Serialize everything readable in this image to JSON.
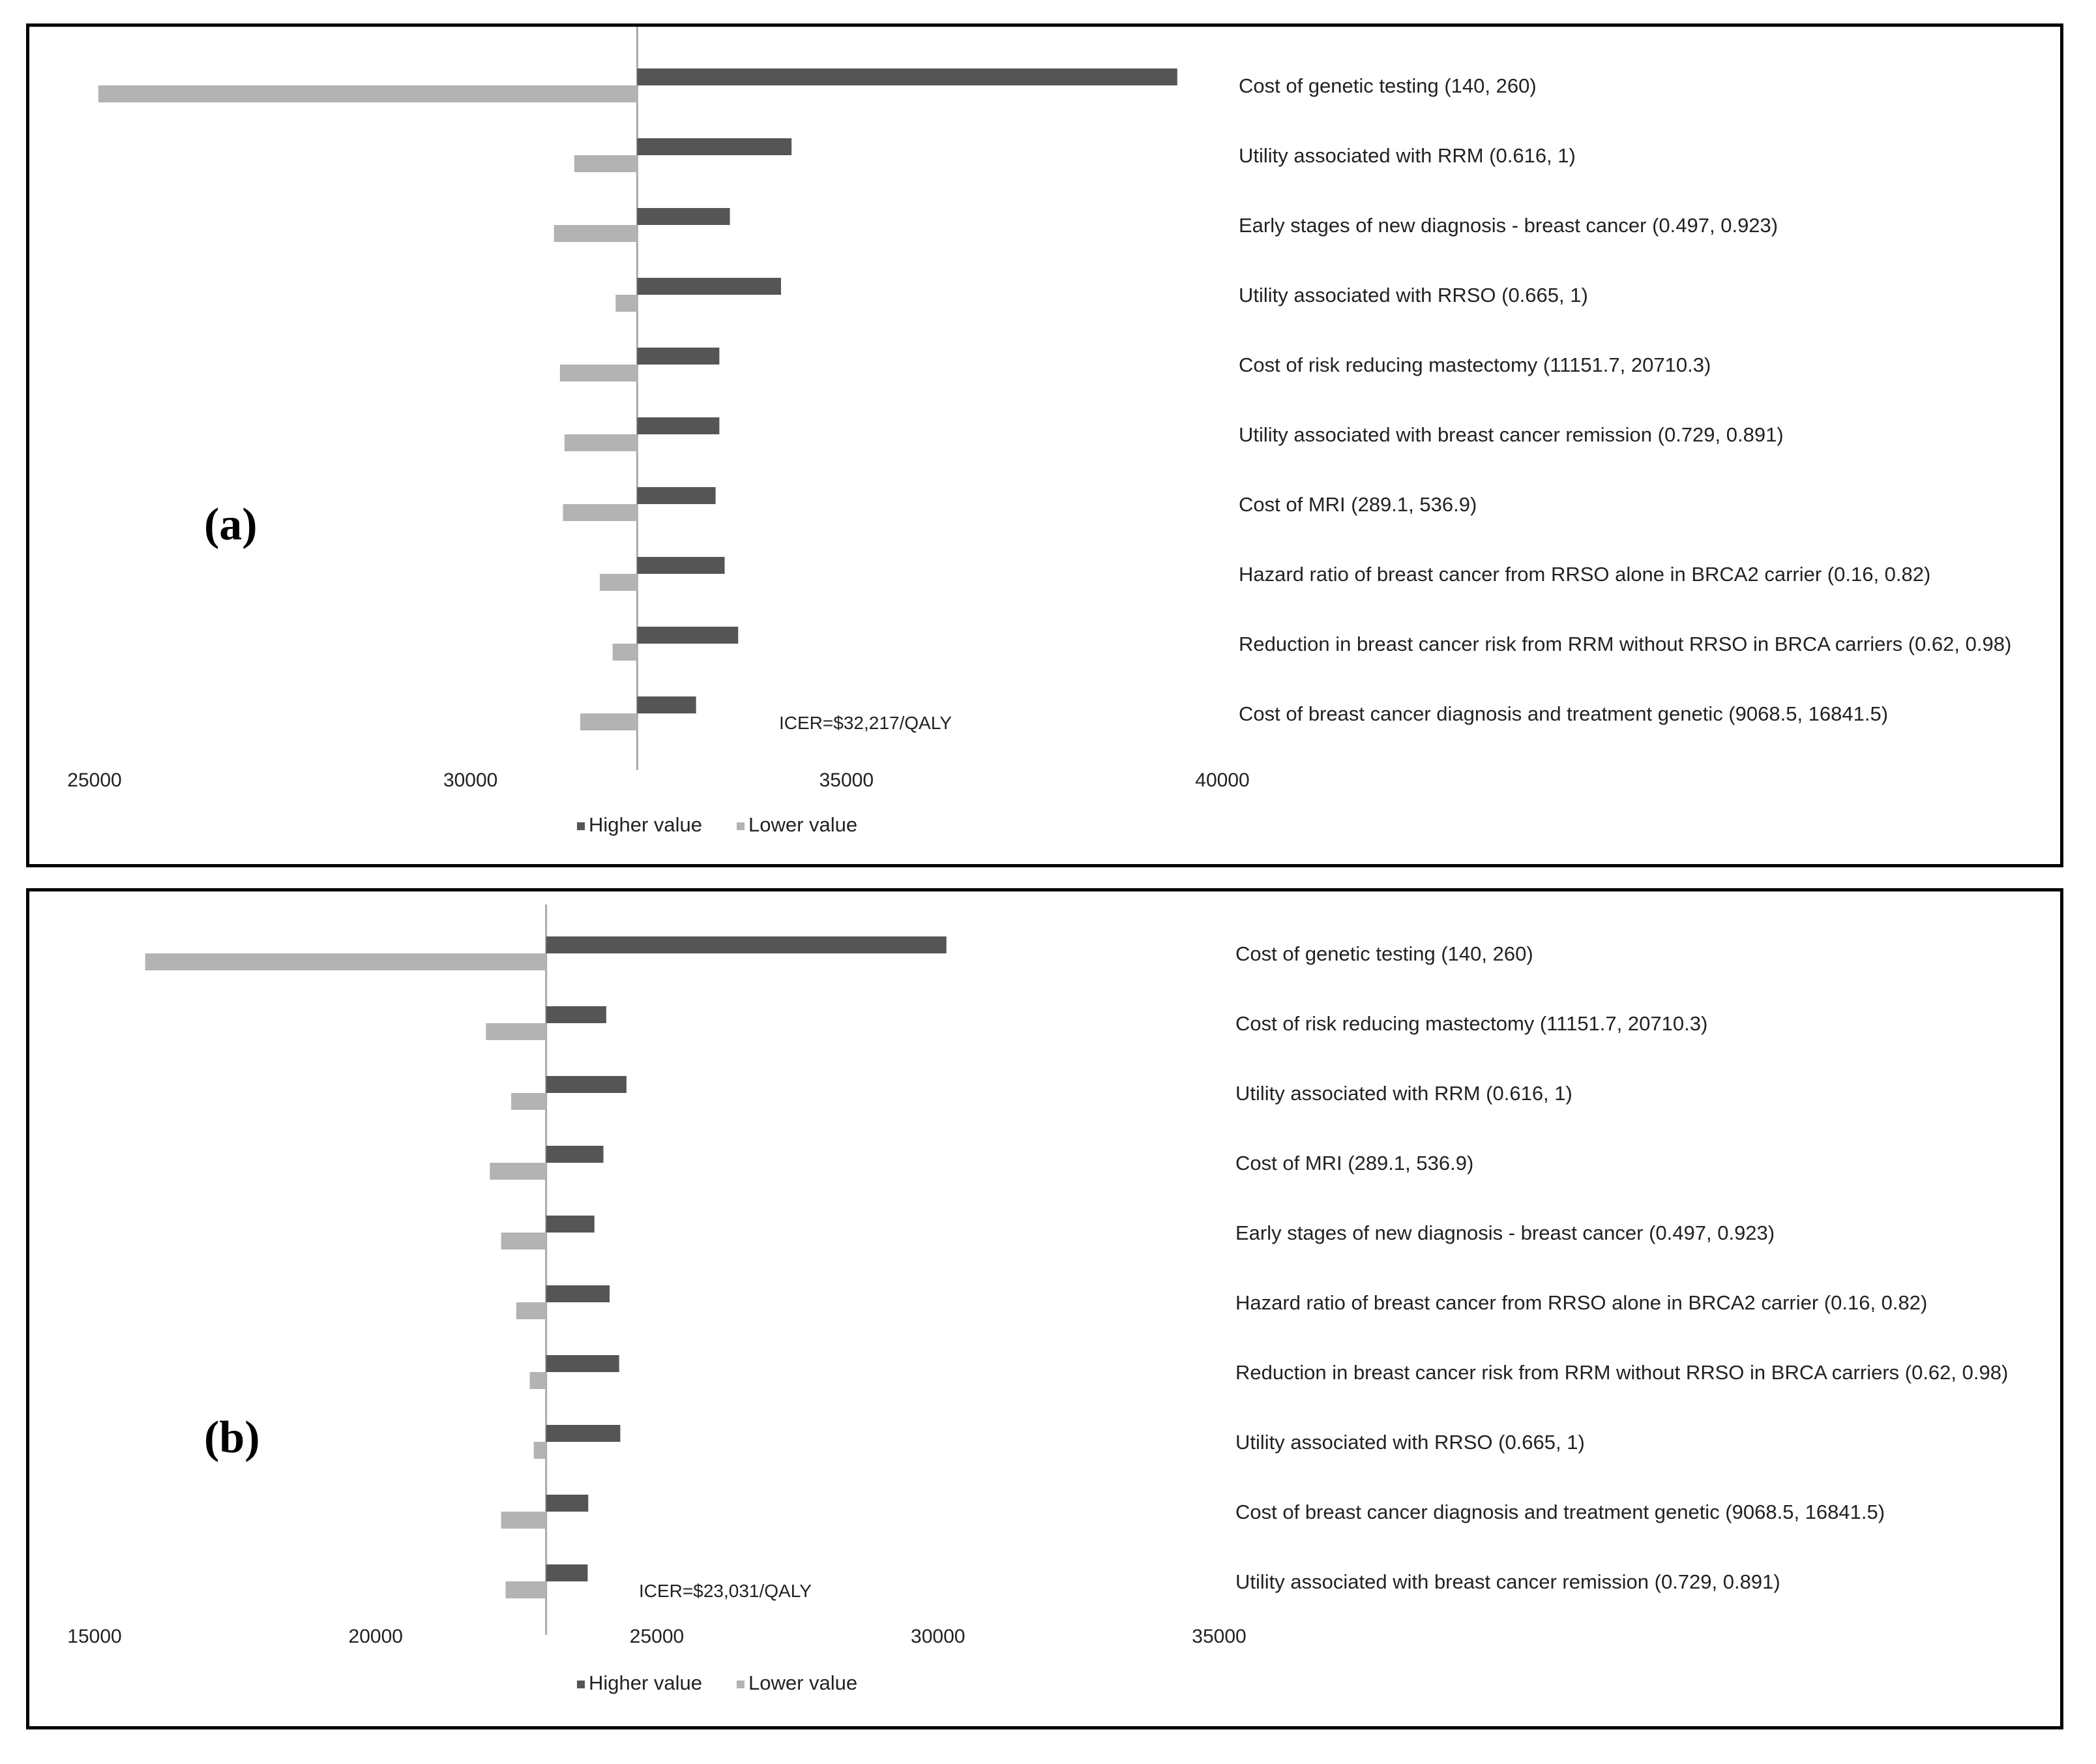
{
  "colors": {
    "higher": "#555555",
    "lower": "#b3b3b3",
    "baseline": "#aaaaaa",
    "border": "#000000"
  },
  "chart_data": [
    {
      "type": "bar",
      "orientation": "horizontal-tornado",
      "panel_label": "(a)",
      "base_value": 32217,
      "annotation": "ICER=$32,217/QALY",
      "xlim": [
        25000,
        40000
      ],
      "xticks": [
        "25000",
        "30000",
        "35000",
        "40000"
      ],
      "legend": [
        "Higher value",
        "Lower value"
      ],
      "legend_position": "bottom",
      "categories": [
        "Cost of genetic testing (140, 260)",
        "Utility associated with RRM (0.616, 1)",
        "Early stages of new diagnosis - breast cancer (0.497, 0.923)",
        "Utility associated with RRSO (0.665, 1)",
        "Cost of risk reducing mastectomy (11151.7, 20710.3)",
        "Utility associated with breast cancer remission (0.729, 0.891)",
        "Cost of MRI (289.1, 536.9)",
        "Hazard ratio of breast cancer from RRSO alone in BRCA2 carrier (0.16, 0.82)",
        "Reduction in breast cancer risk from RRM without RRSO in BRCA carriers (0.62, 0.98)",
        "Cost of breast cancer diagnosis and treatment genetic (9068.5, 16841.5)"
      ],
      "series": [
        {
          "name": "Higher value",
          "values": [
            39400,
            34270,
            33450,
            34130,
            33310,
            33310,
            33260,
            33380,
            33560,
            33000
          ]
        },
        {
          "name": "Lower value",
          "values": [
            25050,
            31380,
            31110,
            31930,
            31190,
            31250,
            31230,
            31720,
            31890,
            31460
          ]
        }
      ]
    },
    {
      "type": "bar",
      "orientation": "horizontal-tornado",
      "panel_label": "(b)",
      "base_value": 23031,
      "annotation": "ICER=$23,031/QALY",
      "xlim": [
        15000,
        35000
      ],
      "xticks": [
        "15000",
        "20000",
        "25000",
        "30000",
        "35000"
      ],
      "legend": [
        "Higher value",
        "Lower value"
      ],
      "legend_position": "bottom",
      "categories": [
        "Cost of genetic testing (140, 260)",
        "Cost of risk reducing mastectomy (11151.7, 20710.3)",
        "Utility associated with RRM (0.616, 1)",
        "Cost of MRI (289.1, 536.9)",
        "Early stages of new diagnosis - breast cancer (0.497, 0.923)",
        "Hazard ratio of breast cancer from RRSO alone in BRCA2 carrier (0.16, 0.82)",
        "Reduction in breast cancer risk from RRM without RRSO in BRCA carriers (0.62, 0.98)",
        "Utility associated with RRSO (0.665, 1)",
        "Cost of breast cancer diagnosis and treatment genetic (9068.5, 16841.5)",
        "Utility associated with breast cancer remission (0.729, 0.891)"
      ],
      "series": [
        {
          "name": "Higher value",
          "values": [
            30150,
            24100,
            24460,
            24050,
            23890,
            24160,
            24330,
            24350,
            23780,
            23770
          ]
        },
        {
          "name": "Lower value",
          "values": [
            15900,
            21960,
            22410,
            22030,
            22230,
            22500,
            22740,
            22810,
            22230,
            22310
          ]
        }
      ]
    }
  ]
}
